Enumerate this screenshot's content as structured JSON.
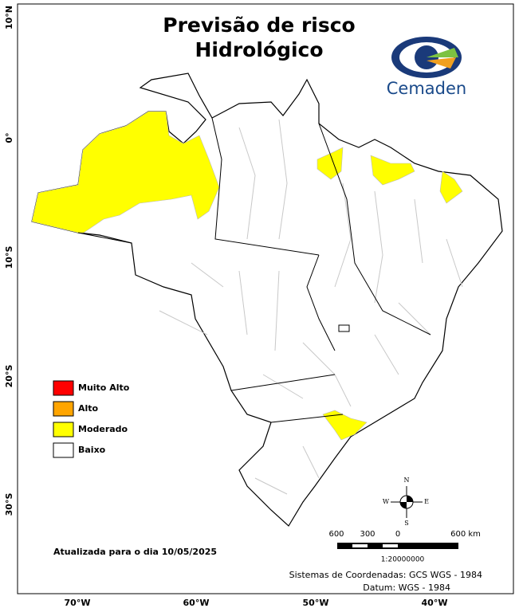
{
  "title_lines": [
    "Previsão de risco",
    "Hidrológico"
  ],
  "logo": "Cemaden",
  "legend": [
    {
      "label": "Muito Alto",
      "color": "#ff0000"
    },
    {
      "label": "Alto",
      "color": "#ffa500"
    },
    {
      "label": "Moderado",
      "color": "#ffff00"
    },
    {
      "label": "Baixo",
      "color": "#ffffff"
    }
  ],
  "lat_labels": [
    "10°N",
    "0°",
    "10°S",
    "20°S",
    "30°S"
  ],
  "lon_labels": [
    "70°W",
    "60°W",
    "50°W",
    "40°W"
  ],
  "compass": {
    "n": "N",
    "s": "S",
    "e": "E",
    "w": "W"
  },
  "scale_bar": {
    "labels": [
      "600",
      "300",
      "0",
      "600 km"
    ],
    "ratio": "1:20000000"
  },
  "updated": "Atualizada para o dia 10/05/2025",
  "crs": [
    "Sistemas de Coordenadas: GCS WGS - 1984",
    "Datum: WGS - 1984"
  ]
}
